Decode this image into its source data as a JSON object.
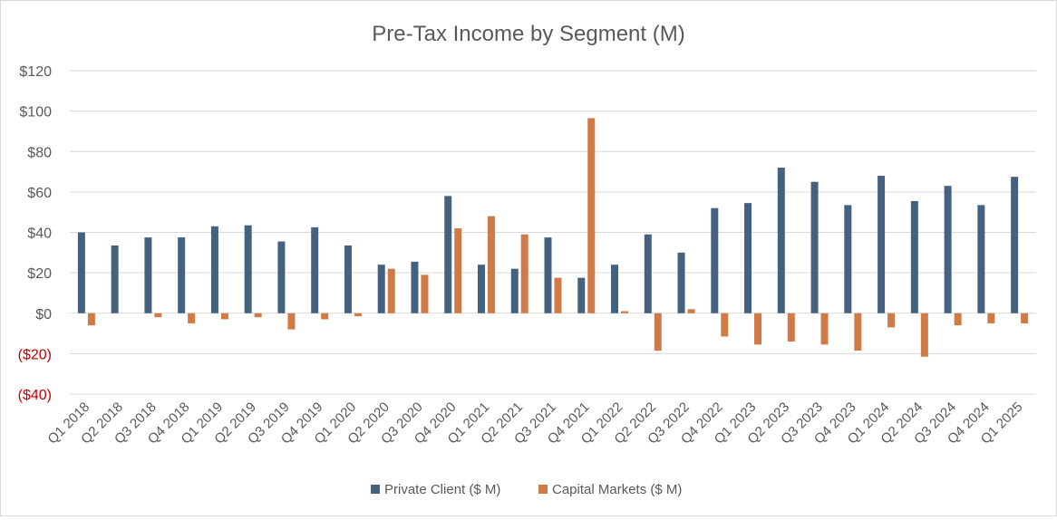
{
  "chart_data": {
    "type": "bar",
    "title": "Pre-Tax Income by Segment (M)",
    "xlabel": "",
    "ylabel": "",
    "ylim": [
      -40,
      120
    ],
    "yticks": [
      120,
      100,
      80,
      60,
      40,
      20,
      0,
      -20,
      -40
    ],
    "ytick_labels": [
      "$120",
      "$100",
      "$80",
      "$60",
      "$40",
      "$20",
      "$0",
      "($20)",
      "($40)"
    ],
    "negative_label_color": "#c00000",
    "grid": true,
    "legend_position": "bottom",
    "categories": [
      "Q1 2018",
      "Q2 2018",
      "Q3 2018",
      "Q4 2018",
      "Q1 2019",
      "Q2 2019",
      "Q3 2019",
      "Q4 2019",
      "Q1 2020",
      "Q2 2020",
      "Q3 2020",
      "Q4 2020",
      "Q1 2021",
      "Q2 2021",
      "Q3 2021",
      "Q4 2021",
      "Q1 2022",
      "Q2 2022",
      "Q3 2022",
      "Q4 2022",
      "Q1 2023",
      "Q2 2023",
      "Q3 2023",
      "Q4 2023",
      "Q1 2024",
      "Q2 2024",
      "Q3 2024",
      "Q4 2024",
      "Q1 2025"
    ],
    "series": [
      {
        "name": "Private Client ($ M)",
        "color": "#44627f",
        "values": [
          40,
          33.5,
          37.5,
          37.5,
          43,
          43.5,
          35.5,
          42.5,
          33.5,
          24,
          25.5,
          58,
          24,
          22,
          37.5,
          17.5,
          24,
          39,
          30,
          52,
          54.5,
          72,
          65,
          53.5,
          68,
          55.5,
          63,
          53.5,
          67.5
        ]
      },
      {
        "name": "Capital Markets ($ M)",
        "color": "#d07a45",
        "values": [
          -6,
          0,
          -2,
          -5,
          -3,
          -2,
          -8,
          -3,
          -1.5,
          22,
          19,
          42,
          48,
          39,
          17.5,
          96.5,
          1,
          -18.5,
          2,
          -11.5,
          -15.5,
          -14,
          -15.5,
          -18.5,
          -7,
          -21.5,
          -6,
          -5,
          -5
        ]
      }
    ]
  }
}
